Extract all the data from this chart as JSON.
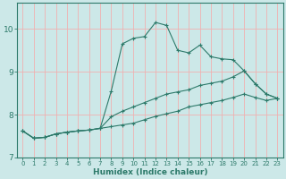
{
  "xlabel": "Humidex (Indice chaleur)",
  "background_color": "#cce8e8",
  "grid_color": "#f0b0b0",
  "line_color": "#2d7a6a",
  "xlim": [
    -0.5,
    23.5
  ],
  "ylim": [
    7,
    10.6
  ],
  "yticks": [
    7,
    8,
    9,
    10
  ],
  "xticks": [
    0,
    1,
    2,
    3,
    4,
    5,
    6,
    7,
    8,
    9,
    10,
    11,
    12,
    13,
    14,
    15,
    16,
    17,
    18,
    19,
    20,
    21,
    22,
    23
  ],
  "line1_x": [
    0,
    1,
    2,
    3,
    4,
    5,
    6,
    7,
    8,
    9,
    10,
    11,
    12,
    13,
    14,
    15,
    16,
    17,
    18,
    19,
    20,
    21,
    22,
    23
  ],
  "line1_y": [
    7.62,
    7.45,
    7.47,
    7.55,
    7.59,
    7.62,
    7.64,
    7.68,
    8.55,
    9.65,
    9.78,
    9.82,
    10.15,
    10.08,
    9.5,
    9.44,
    9.62,
    9.35,
    9.3,
    9.28,
    9.02,
    8.72,
    8.48,
    8.38
  ],
  "line2_x": [
    0,
    1,
    2,
    3,
    4,
    5,
    6,
    7,
    8,
    9,
    10,
    11,
    12,
    13,
    14,
    15,
    16,
    17,
    18,
    19,
    20,
    21,
    22,
    23
  ],
  "line2_y": [
    7.62,
    7.45,
    7.47,
    7.55,
    7.59,
    7.62,
    7.64,
    7.68,
    7.95,
    8.08,
    8.18,
    8.28,
    8.38,
    8.48,
    8.53,
    8.58,
    8.68,
    8.73,
    8.78,
    8.88,
    9.02,
    8.72,
    8.48,
    8.38
  ],
  "line3_x": [
    0,
    1,
    2,
    3,
    4,
    5,
    6,
    7,
    8,
    9,
    10,
    11,
    12,
    13,
    14,
    15,
    16,
    17,
    18,
    19,
    20,
    21,
    22,
    23
  ],
  "line3_y": [
    7.62,
    7.45,
    7.47,
    7.55,
    7.59,
    7.62,
    7.64,
    7.68,
    7.72,
    7.76,
    7.8,
    7.88,
    7.96,
    8.02,
    8.08,
    8.18,
    8.23,
    8.28,
    8.33,
    8.4,
    8.48,
    8.4,
    8.33,
    8.38
  ]
}
